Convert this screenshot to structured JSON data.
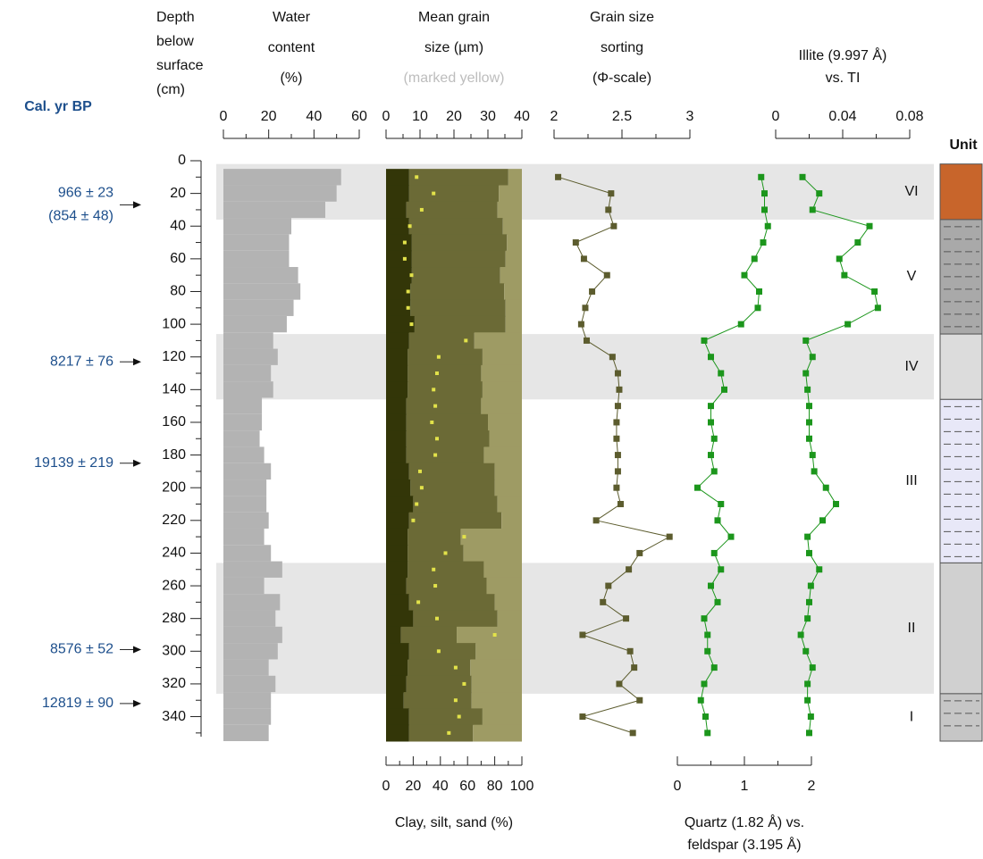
{
  "chart_data": {
    "type": "depth-profile",
    "age_label": "Cal. yr BP",
    "depth_title": [
      "Depth",
      "below",
      "surface",
      "(cm)"
    ],
    "ylim": [
      0,
      355
    ],
    "yticks": [
      0,
      20,
      40,
      60,
      80,
      100,
      120,
      140,
      160,
      180,
      200,
      220,
      240,
      260,
      280,
      300,
      320,
      340
    ],
    "yminorticks": [
      10,
      30,
      50,
      70,
      90,
      110,
      130,
      150,
      170,
      190,
      210,
      230,
      250,
      270,
      290,
      310,
      330,
      350
    ],
    "dates": [
      {
        "label": "966 ± 23",
        "label2": "(854 ± 48)",
        "depth": 27
      },
      {
        "label": "8217 ± 76",
        "depth": 123
      },
      {
        "label": "19139 ± 219",
        "depth": 185
      },
      {
        "label": "8576 ± 52",
        "depth": 299
      },
      {
        "label": "12819 ± 90",
        "depth": 332
      }
    ],
    "unit_title": "Unit",
    "units": [
      {
        "label": "VI",
        "from": 2,
        "to": 36,
        "shaded": true,
        "color": "#c8652b"
      },
      {
        "label": "V",
        "from": 36,
        "to": 106,
        "shaded": false,
        "color": "#a9a9a9"
      },
      {
        "label": "IV",
        "from": 106,
        "to": 146,
        "shaded": true,
        "color": "#dcdcdc"
      },
      {
        "label": "III",
        "from": 146,
        "to": 246,
        "shaded": false,
        "color": "#e8e8f8"
      },
      {
        "label": "II",
        "from": 246,
        "to": 326,
        "shaded": true,
        "color": "#d0d0d0"
      },
      {
        "label": "I",
        "from": 326,
        "to": 355,
        "shaded": false,
        "color": "#c6c6c6"
      }
    ],
    "depth": [
      10,
      20,
      30,
      40,
      50,
      60,
      70,
      80,
      90,
      100,
      110,
      120,
      130,
      140,
      150,
      160,
      170,
      180,
      190,
      200,
      210,
      220,
      230,
      240,
      250,
      260,
      270,
      280,
      290,
      300,
      310,
      320,
      330,
      340,
      350
    ],
    "panels": [
      {
        "type": "step-bar",
        "title": [
          "Water",
          "content",
          "(%)"
        ],
        "axis": "top",
        "xlim": [
          0,
          60
        ],
        "xticks": [
          0,
          20,
          40,
          60
        ],
        "xminorticks": [
          10,
          30,
          50
        ],
        "color": "#b3b3b3",
        "values": [
          52,
          50,
          45,
          30,
          29,
          29,
          33,
          34,
          31,
          28,
          22,
          24,
          21,
          22,
          17,
          17,
          16,
          18,
          21,
          19,
          19,
          20,
          18,
          21,
          26,
          18,
          25,
          23,
          26,
          24,
          20,
          23,
          21,
          21,
          20
        ]
      },
      {
        "type": "stacked-bar",
        "title": [
          "Mean grain",
          "size (µm)"
        ],
        "subtitle": "(marked yellow)",
        "xlabel": [
          "Clay, silt, sand (%)"
        ],
        "axis": "bottom",
        "xlim": [
          0,
          100
        ],
        "xticks": [
          0,
          20,
          40,
          60,
          80,
          100
        ],
        "xminorticks": [
          10,
          30,
          50,
          70,
          90
        ],
        "series": [
          {
            "color": "#333608",
            "values": [
              17,
              17,
              15,
              17,
              19,
              19,
              19,
              18,
              18,
              21,
              17,
              16,
              16,
              16,
              15,
              15,
              15,
              15,
              17,
              18,
              20,
              17,
              16,
              16,
              16,
              15,
              17,
              20,
              11,
              17,
              16,
              15,
              13,
              17,
              17
            ]
          },
          {
            "color": "#6b6a36",
            "values": [
              73,
              66,
              67,
              69,
              70,
              69,
              65,
              69,
              70,
              67,
              48,
              55,
              54,
              55,
              55,
              60,
              61,
              57,
              63,
              62,
              62,
              68,
              39,
              41,
              56,
              59,
              63,
              62,
              41,
              49,
              46,
              48,
              50,
              54,
              47
            ]
          },
          {
            "color": "#9e9b64",
            "values": [
              10,
              17,
              18,
              14,
              11,
              12,
              16,
              13,
              12,
              12,
              35,
              29,
              30,
              29,
              30,
              25,
              24,
              28,
              20,
              20,
              18,
              15,
              45,
              43,
              28,
              26,
              20,
              18,
              48,
              34,
              38,
              37,
              37,
              29,
              36
            ]
          }
        ],
        "mean": {
          "color": "#e2e24a",
          "xlim": [
            0,
            40
          ],
          "xticks": [
            0,
            10,
            20,
            30,
            40
          ],
          "xminorticks": [
            5,
            15,
            25,
            35
          ],
          "values": [
            9,
            14,
            10.5,
            7,
            5.5,
            5.5,
            7.5,
            6.5,
            6.5,
            7.5,
            23.5,
            15.5,
            15,
            14,
            14.5,
            13.5,
            15,
            14.5,
            10,
            10.5,
            9,
            8,
            23,
            17.5,
            14,
            14.5,
            9.5,
            15,
            32,
            15.5,
            20.5,
            23,
            20.5,
            21.5,
            18.5
          ]
        }
      },
      {
        "type": "line",
        "title": [
          "Grain size",
          "sorting",
          "(Φ-scale)"
        ],
        "axis": "top",
        "xlim": [
          2,
          3
        ],
        "xticks": [
          2,
          2.5,
          3
        ],
        "xminorticks": [
          2.25,
          2.75
        ],
        "color": "#5c5c2e",
        "values": [
          2.03,
          2.42,
          2.4,
          2.44,
          2.16,
          2.22,
          2.39,
          2.28,
          2.23,
          2.2,
          2.24,
          2.43,
          2.47,
          2.48,
          2.47,
          2.46,
          2.46,
          2.47,
          2.47,
          2.46,
          2.49,
          2.31,
          2.85,
          2.63,
          2.55,
          2.4,
          2.36,
          2.53,
          2.21,
          2.56,
          2.59,
          2.48,
          2.63,
          2.21,
          2.58
        ]
      },
      {
        "type": "line",
        "xlabel": [
          "Quartz (1.82 Å) vs.",
          "feldspar (3.195 Å)"
        ],
        "axis": "bottom",
        "xlim": [
          0,
          2
        ],
        "xticks": [
          0,
          1,
          2
        ],
        "xminorticks": [
          0.5,
          1.5
        ],
        "color": "#1c961c",
        "values": [
          1.25,
          1.3,
          1.3,
          1.35,
          1.28,
          1.15,
          1.0,
          1.22,
          1.2,
          0.95,
          0.4,
          0.5,
          0.65,
          0.7,
          0.5,
          0.5,
          0.55,
          0.5,
          0.55,
          0.3,
          0.65,
          0.6,
          0.8,
          0.55,
          0.65,
          0.5,
          0.6,
          0.4,
          0.45,
          0.45,
          0.55,
          0.4,
          0.35,
          0.42,
          0.45
        ]
      },
      {
        "type": "line",
        "title": [
          "Illite (9.997 Å)",
          "vs. TI"
        ],
        "axis": "top",
        "xlim": [
          0,
          0.08
        ],
        "xticks": [
          0,
          0.04,
          0.08
        ],
        "xminorticks": [
          0.02,
          0.06
        ],
        "color": "#1c961c",
        "values": [
          0.016,
          0.026,
          0.022,
          0.056,
          0.049,
          0.038,
          0.041,
          0.059,
          0.061,
          0.043,
          0.018,
          0.022,
          0.018,
          0.019,
          0.02,
          0.02,
          0.02,
          0.022,
          0.023,
          0.03,
          0.036,
          0.028,
          0.019,
          0.02,
          0.026,
          0.021,
          0.02,
          0.019,
          0.015,
          0.018,
          0.022,
          0.019,
          0.019,
          0.021,
          0.02
        ]
      }
    ]
  }
}
